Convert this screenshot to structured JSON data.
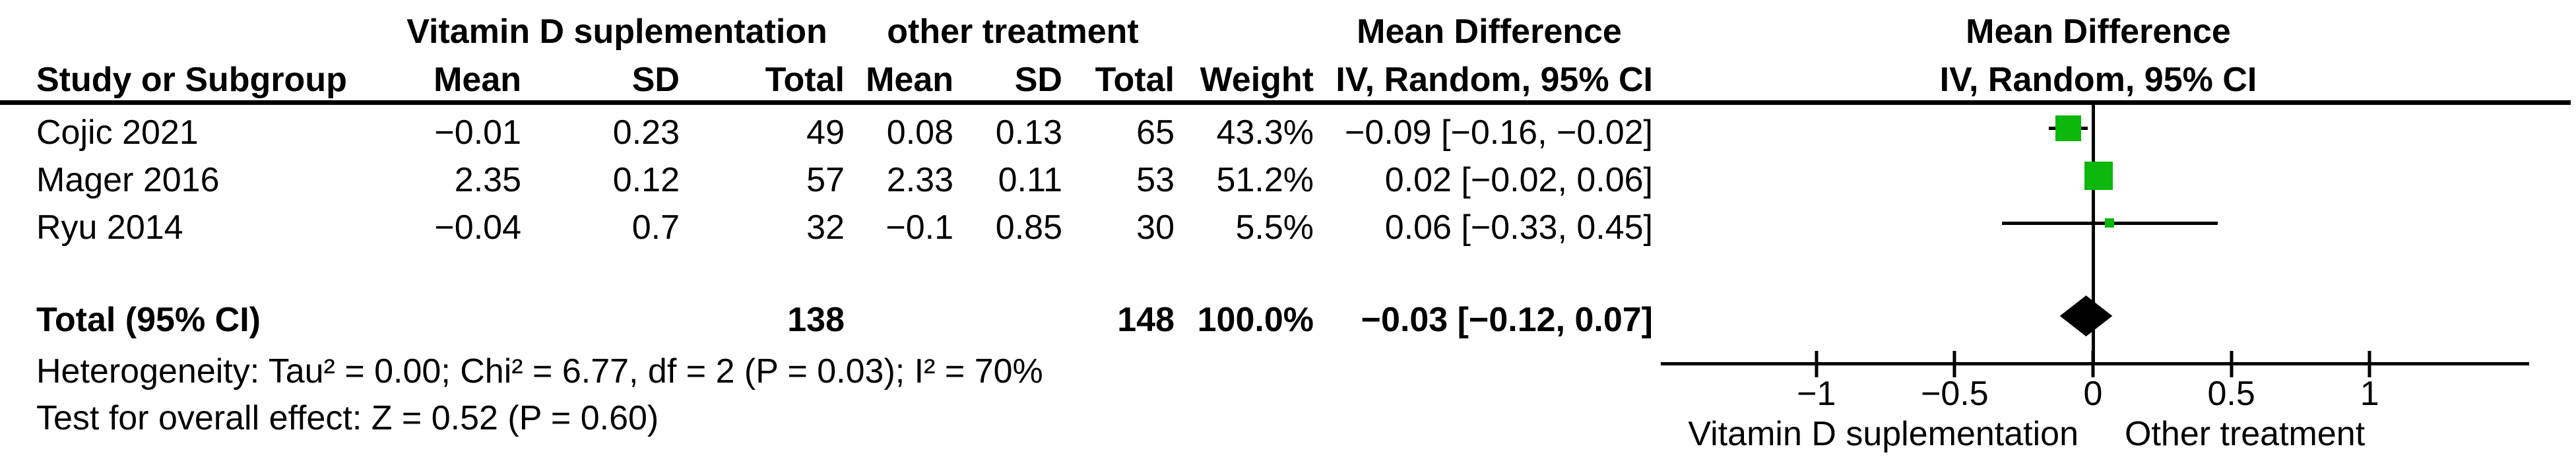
{
  "figure": {
    "kind": "forest-plot",
    "background": "#FFFFFF"
  },
  "colors": {
    "text": "#000000",
    "lines": "#000000",
    "square": "#0CB80C",
    "diamond": "#000000"
  },
  "table": {
    "group_headers": {
      "experimental": "Vitamin D suplementation",
      "control": "other treatment",
      "effect": "Mean Difference"
    },
    "column_headers": {
      "study": "Study or Subgroup",
      "exp_mean": "Mean",
      "exp_sd": "SD",
      "exp_total": "Total",
      "ctl_mean": "Mean",
      "ctl_sd": "SD",
      "ctl_total": "Total",
      "weight": "Weight",
      "effect_ci": "IV, Random, 95% CI"
    },
    "rows": [
      {
        "study": "Cojic 2021",
        "exp_mean": "−0.01",
        "exp_sd": "0.23",
        "exp_total": "49",
        "ctl_mean": "0.08",
        "ctl_sd": "0.13",
        "ctl_total": "65",
        "weight": "43.3%",
        "effect_ci": "−0.09 [−0.16, −0.02]"
      },
      {
        "study": "Mager 2016",
        "exp_mean": "2.35",
        "exp_sd": "0.12",
        "exp_total": "57",
        "ctl_mean": "2.33",
        "ctl_sd": "0.11",
        "ctl_total": "53",
        "weight": "51.2%",
        "effect_ci": "0.02 [−0.02, 0.06]"
      },
      {
        "study": "Ryu 2014",
        "exp_mean": "−0.04",
        "exp_sd": "0.7",
        "exp_total": "32",
        "ctl_mean": "−0.1",
        "ctl_sd": "0.85",
        "ctl_total": "30",
        "weight": "5.5%",
        "effect_ci": "0.06 [−0.33, 0.45]"
      }
    ],
    "total_row": {
      "study": "Total (95% CI)",
      "exp_total": "138",
      "ctl_total": "148",
      "weight": "100.0%",
      "effect_ci": "−0.03 [−0.12, 0.07]"
    },
    "footnotes": {
      "heterogeneity": "Heterogeneity: Tau² = 0.00; Chi² = 6.77, df = 2 (P = 0.03); I² = 70%",
      "overall_effect": "Test for overall effect: Z = 0.52 (P = 0.60)"
    }
  },
  "plot": {
    "header_line1": "Mean Difference",
    "header_line2": "IV, Random, 95% CI",
    "tick_labels": [
      "−1",
      "−0.5",
      "0",
      "0.5",
      "1"
    ],
    "favours_left": "Vitamin D suplementation",
    "favours_right": "Other treatment"
  },
  "chart_data": {
    "type": "forest",
    "effect_measure": "Mean Difference",
    "model": "IV, Random, 95% CI",
    "studies": [
      {
        "name": "Cojic 2021",
        "exp_mean": -0.01,
        "exp_sd": 0.23,
        "exp_n": 49,
        "ctl_mean": 0.08,
        "ctl_sd": 0.13,
        "ctl_n": 65,
        "weight_pct": 43.3,
        "md": -0.09,
        "ci_low": -0.16,
        "ci_high": -0.02
      },
      {
        "name": "Mager 2016",
        "exp_mean": 2.35,
        "exp_sd": 0.12,
        "exp_n": 57,
        "ctl_mean": 2.33,
        "ctl_sd": 0.11,
        "ctl_n": 53,
        "weight_pct": 51.2,
        "md": 0.02,
        "ci_low": -0.02,
        "ci_high": 0.06
      },
      {
        "name": "Ryu 2014",
        "exp_mean": -0.04,
        "exp_sd": 0.7,
        "exp_n": 32,
        "ctl_mean": -0.1,
        "ctl_sd": 0.85,
        "ctl_n": 30,
        "weight_pct": 5.5,
        "md": 0.06,
        "ci_low": -0.33,
        "ci_high": 0.45
      }
    ],
    "total": {
      "exp_n": 138,
      "ctl_n": 148,
      "weight_pct": 100.0,
      "md": -0.03,
      "ci_low": -0.12,
      "ci_high": 0.07
    },
    "heterogeneity": {
      "tau2": 0.0,
      "chi2": 6.77,
      "df": 2,
      "p": 0.03,
      "i2_pct": 70
    },
    "overall_effect": {
      "z": 0.52,
      "p": 0.6
    },
    "xticks": [
      -1,
      -0.5,
      0,
      0.5,
      1
    ],
    "xlim": [
      -1.56,
      1.58
    ],
    "favours_left": "Vitamin D suplementation",
    "favours_right": "Other treatment"
  }
}
